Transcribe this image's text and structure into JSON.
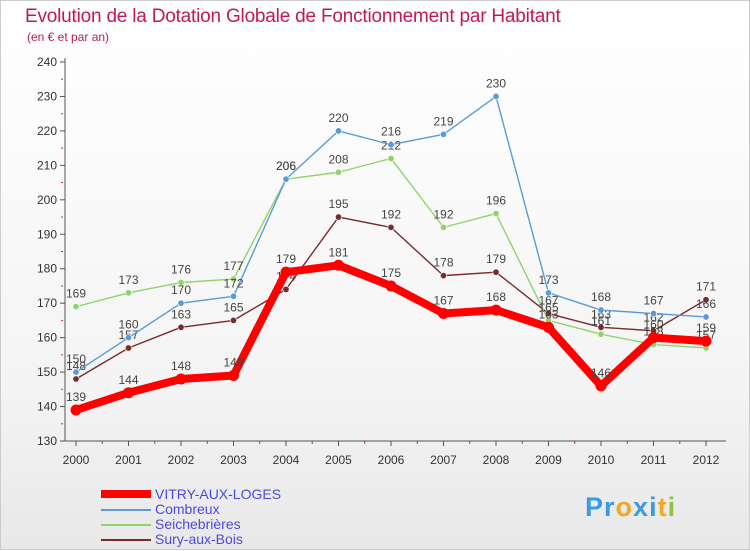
{
  "header": {
    "title": "Evolution de la Dotation Globale de Fonctionnement par Habitant",
    "subtitle": "(en € et par an)"
  },
  "logo": {
    "text": "Proxiti"
  },
  "chart_data": {
    "type": "line",
    "title": "Evolution de la Dotation Globale de Fonctionnement par Habitant",
    "subtitle": "(en € et par an)",
    "xlabel": "",
    "ylabel": "",
    "x": [
      "2000",
      "2001",
      "2002",
      "2003",
      "2004",
      "2005",
      "2006",
      "2007",
      "2008",
      "2009",
      "2010",
      "2011",
      "2012"
    ],
    "ylim": [
      130,
      240
    ],
    "yticks": [
      130,
      140,
      150,
      160,
      170,
      180,
      190,
      200,
      210,
      220,
      230,
      240
    ],
    "grid": false,
    "legend_position": "bottom-left",
    "series": [
      {
        "name": "Sury-aux-Bois",
        "color": "#7a2a2a",
        "values": [
          148,
          157,
          163,
          165,
          174,
          195,
          192,
          178,
          179,
          167,
          163,
          162,
          171
        ]
      },
      {
        "name": "Seichebrières",
        "color": "#8fd46a",
        "values": [
          169,
          173,
          176,
          177,
          206,
          208,
          212,
          192,
          196,
          165,
          161,
          158,
          157
        ]
      },
      {
        "name": "Combreux",
        "color": "#5a9bd5",
        "values": [
          150,
          160,
          170,
          172,
          206,
          220,
          216,
          219,
          230,
          173,
          168,
          167,
          166
        ]
      },
      {
        "name": "VITRY-AUX-LOGES",
        "color": "#ff0000",
        "values": [
          139,
          144,
          148,
          149,
          179,
          181,
          175,
          167,
          168,
          163,
          146,
          160,
          159
        ]
      }
    ],
    "legend_order": [
      "VITRY-AUX-LOGES",
      "Combreux",
      "Seichebrières",
      "Sury-aux-Bois"
    ]
  }
}
